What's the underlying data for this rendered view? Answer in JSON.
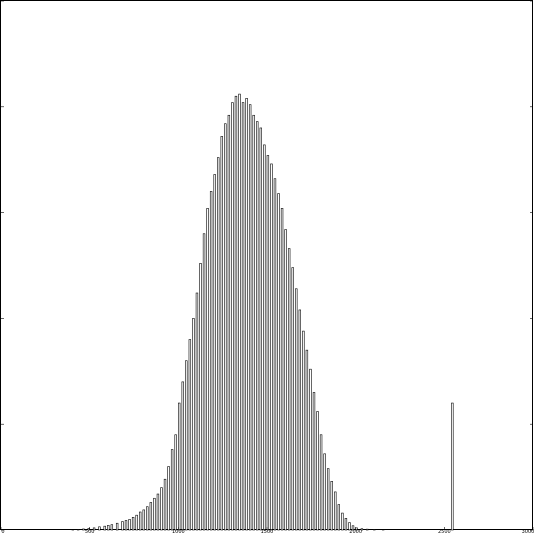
{
  "chart_data": {
    "type": "bar",
    "style": "histogram-outline",
    "title": "",
    "xlabel": "",
    "ylabel": "",
    "xlim": [
      0,
      3000
    ],
    "ylim": [
      0,
      2500
    ],
    "x_ticks": [
      0,
      500,
      1000,
      1500,
      2000,
      2500,
      3000
    ],
    "x_tick_labels": [
      "0",
      "500",
      "1000",
      "1500",
      "2000",
      "2500",
      "3000"
    ],
    "y_ticks": [
      0,
      500,
      1000,
      1500,
      2000,
      2500
    ],
    "y_tick_labels": [
      "",
      "",
      "",
      "",
      "",
      ""
    ],
    "grid": false,
    "bar_edge_color": "#000000",
    "bar_fill_color": "#ffffff",
    "bin_width": 10,
    "series": [
      {
        "x": [
          400,
          430,
          460,
          490,
          520,
          550,
          580,
          600,
          620,
          650,
          680,
          700,
          720,
          740,
          760,
          780,
          800,
          820,
          840,
          860,
          880,
          900,
          920,
          940,
          960,
          980,
          1000,
          1020,
          1040,
          1060,
          1080,
          1100,
          1120,
          1140,
          1160,
          1180,
          1200,
          1220,
          1240,
          1260,
          1280,
          1300,
          1320,
          1340,
          1360,
          1380,
          1400,
          1420,
          1440,
          1460,
          1480,
          1500,
          1520,
          1540,
          1560,
          1580,
          1600,
          1620,
          1640,
          1660,
          1680,
          1700,
          1720,
          1740,
          1760,
          1780,
          1800,
          1820,
          1840,
          1860,
          1880,
          1900,
          1920,
          1940,
          1960,
          1980,
          2000,
          2030,
          2060,
          2100,
          2150,
          2540
        ],
        "values": [
          2,
          3,
          5,
          8,
          10,
          15,
          18,
          22,
          25,
          32,
          40,
          45,
          50,
          60,
          70,
          85,
          95,
          110,
          130,
          150,
          170,
          200,
          240,
          300,
          380,
          450,
          600,
          700,
          800,
          900,
          1000,
          1120,
          1260,
          1400,
          1520,
          1600,
          1680,
          1760,
          1860,
          1920,
          1960,
          2020,
          2050,
          2060,
          2020,
          2040,
          2010,
          1960,
          1930,
          1900,
          1820,
          1770,
          1730,
          1660,
          1590,
          1520,
          1420,
          1330,
          1240,
          1140,
          1040,
          940,
          850,
          760,
          650,
          560,
          450,
          360,
          290,
          230,
          180,
          120,
          80,
          55,
          35,
          20,
          10,
          6,
          4,
          3,
          2,
          600
        ]
      }
    ]
  }
}
